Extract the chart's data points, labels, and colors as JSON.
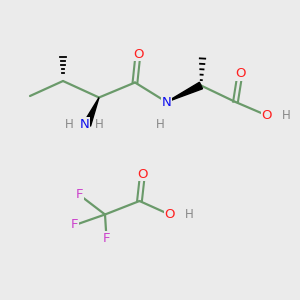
{
  "bg_color": "#ebebeb",
  "bond_color": "#6a9a6a",
  "atom_colors": {
    "O": "#ff2020",
    "N": "#1010ee",
    "F": "#cc44cc",
    "H": "#888888",
    "C": "#6a9a6a"
  }
}
